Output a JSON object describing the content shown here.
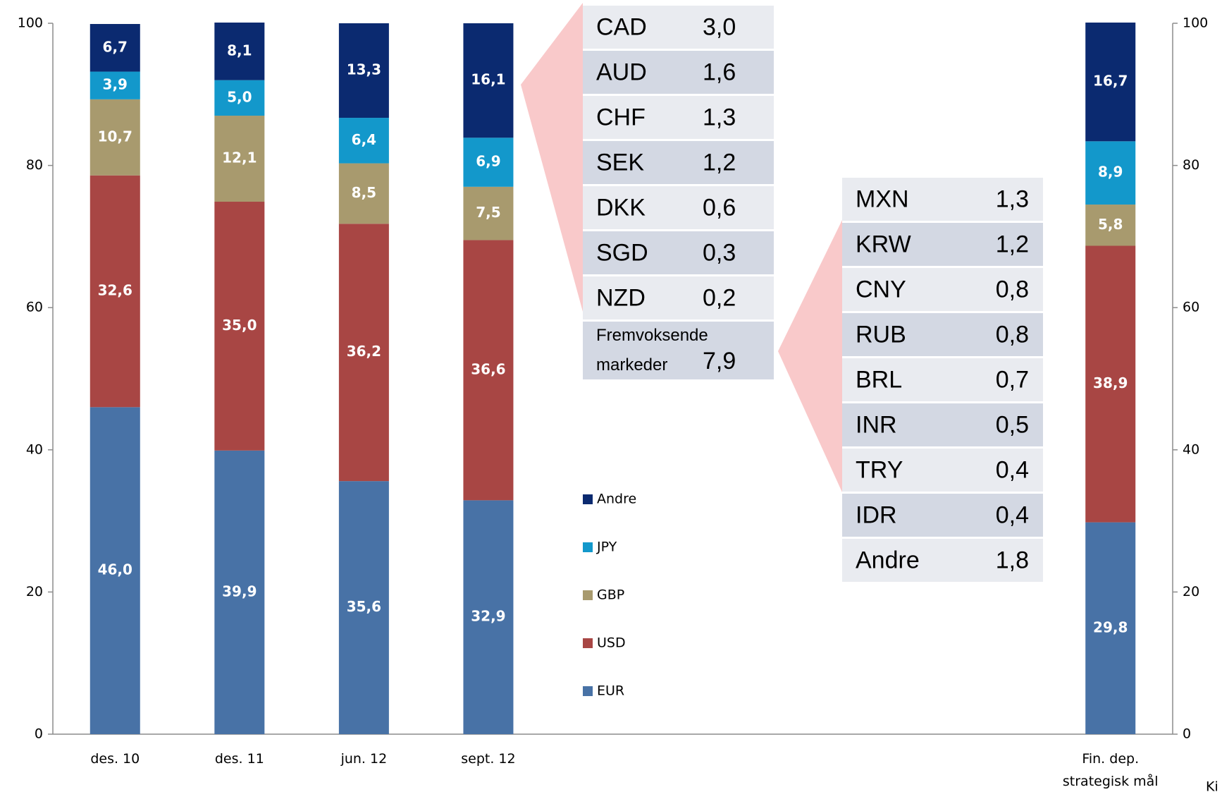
{
  "chart_data": {
    "type": "stacked_bar",
    "categories": [
      "des. 10",
      "des. 11",
      "jun. 12",
      "sept. 12",
      null,
      null,
      null,
      null,
      "Fin. dep.\nstrategisk mål"
    ],
    "series": [
      {
        "name": "EUR",
        "color": "#4872a6",
        "values": [
          46.0,
          39.9,
          35.6,
          32.9,
          null,
          null,
          null,
          null,
          29.8
        ],
        "value_labels": [
          "46,0",
          "39,9",
          "35,6",
          "32,9",
          null,
          null,
          null,
          null,
          "29,8"
        ]
      },
      {
        "name": "USD",
        "color": "#a84644",
        "values": [
          32.6,
          35.0,
          36.2,
          36.6,
          null,
          null,
          null,
          null,
          38.9
        ],
        "value_labels": [
          "32,6",
          "35,0",
          "36,2",
          "36,6",
          null,
          null,
          null,
          null,
          "38,9"
        ]
      },
      {
        "name": "GBP",
        "color": "#a89a6e",
        "values": [
          10.7,
          12.1,
          8.5,
          7.5,
          null,
          null,
          null,
          null,
          5.8
        ],
        "value_labels": [
          "10,7",
          "12,1",
          "8,5",
          "7,5",
          null,
          null,
          null,
          null,
          "5,8"
        ]
      },
      {
        "name": "JPY",
        "color": "#1398cb",
        "values": [
          3.9,
          5.0,
          6.4,
          6.9,
          null,
          null,
          null,
          null,
          8.9
        ],
        "value_labels": [
          "3,9",
          "5,0",
          "6,4",
          "6,9",
          null,
          null,
          null,
          null,
          "8,9"
        ]
      },
      {
        "name": "Andre",
        "color": "#0b2a70",
        "values": [
          6.7,
          8.1,
          13.3,
          16.1,
          null,
          null,
          null,
          null,
          16.7
        ],
        "value_labels": [
          "6,7",
          "8,1",
          "13,3",
          "16,1",
          null,
          null,
          null,
          null,
          "16,7"
        ]
      }
    ],
    "ylim": [
      0,
      100
    ],
    "yticks": [
      0,
      20,
      40,
      60,
      80,
      100
    ],
    "y2lim": [
      0,
      100
    ],
    "y2ticks": [
      0,
      20,
      40,
      60,
      80,
      100
    ],
    "legend": "center"
  },
  "tables": [
    {
      "rows": [
        [
          "CAD",
          "3,0"
        ],
        [
          "AUD",
          "1,6"
        ],
        [
          "CHF",
          "1,3"
        ],
        [
          "SEK",
          "1,2"
        ],
        [
          "DKK",
          "0,6"
        ],
        [
          "SGD",
          "0,3"
        ],
        [
          "NZD",
          "0,2"
        ],
        [
          "Fremvoksende markeder",
          "7,9"
        ]
      ]
    },
    {
      "rows": [
        [
          "MXN",
          "1,3"
        ],
        [
          "KRW",
          "1,2"
        ],
        [
          "CNY",
          "0,8"
        ],
        [
          "RUB",
          "0,8"
        ],
        [
          "BRL",
          "0,7"
        ],
        [
          "INR",
          "0,5"
        ],
        [
          "TRY",
          "0,4"
        ],
        [
          "IDR",
          "0,4"
        ],
        [
          "Andre",
          "1,8"
        ]
      ]
    }
  ],
  "source": "Ki"
}
